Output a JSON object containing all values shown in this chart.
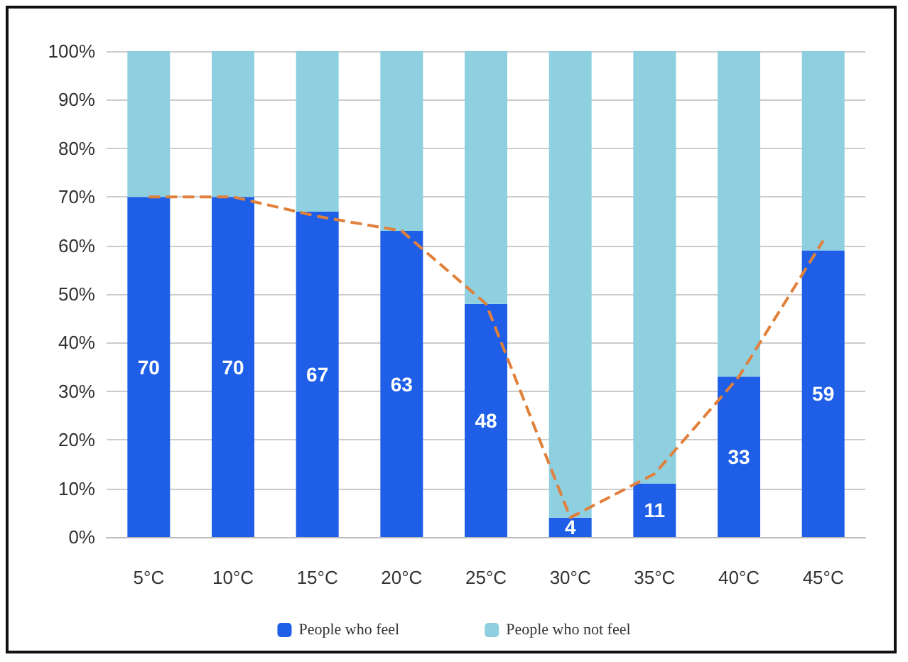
{
  "chart_data": {
    "type": "bar",
    "stacked": true,
    "categories": [
      "5°C",
      "10°C",
      "15°C",
      "20°C",
      "25°C",
      "30°C",
      "35°C",
      "40°C",
      "45°C"
    ],
    "series": [
      {
        "name": "People who feel",
        "color": "#1f5fe8",
        "values": [
          70,
          70,
          67,
          63,
          48,
          4,
          11,
          33,
          59
        ],
        "value_labels": [
          "70",
          "70",
          "67",
          "63",
          "48",
          "4",
          "11",
          "33",
          "59"
        ]
      },
      {
        "name": "People who not feel",
        "color": "#8ecfe0",
        "values": [
          30,
          30,
          33,
          37,
          52,
          96,
          89,
          67,
          41
        ]
      },
      {
        "type": "line",
        "color": "#e0803a",
        "line_style": "dashed",
        "marker": "none",
        "x": [
          "5°C",
          "10°C",
          "15°C",
          "20°C",
          "25°C",
          "30°C",
          "35°C",
          "40°C",
          "45°C"
        ],
        "values": [
          70,
          70,
          66,
          63,
          48,
          4,
          13,
          33,
          61
        ]
      }
    ],
    "ylim": [
      0,
      100
    ],
    "yticks": [
      {
        "value": 0,
        "label": "0%"
      },
      {
        "value": 10,
        "label": "10%"
      },
      {
        "value": 20,
        "label": "20%"
      },
      {
        "value": 30,
        "label": "30%"
      },
      {
        "value": 40,
        "label": "40%"
      },
      {
        "value": 50,
        "label": "50%"
      },
      {
        "value": 60,
        "label": "60%"
      },
      {
        "value": 70,
        "label": "70%"
      },
      {
        "value": 80,
        "label": "80%"
      },
      {
        "value": 90,
        "label": "90%"
      },
      {
        "value": 100,
        "label": "100%"
      }
    ],
    "grid": "y",
    "legend": "bottom"
  }
}
